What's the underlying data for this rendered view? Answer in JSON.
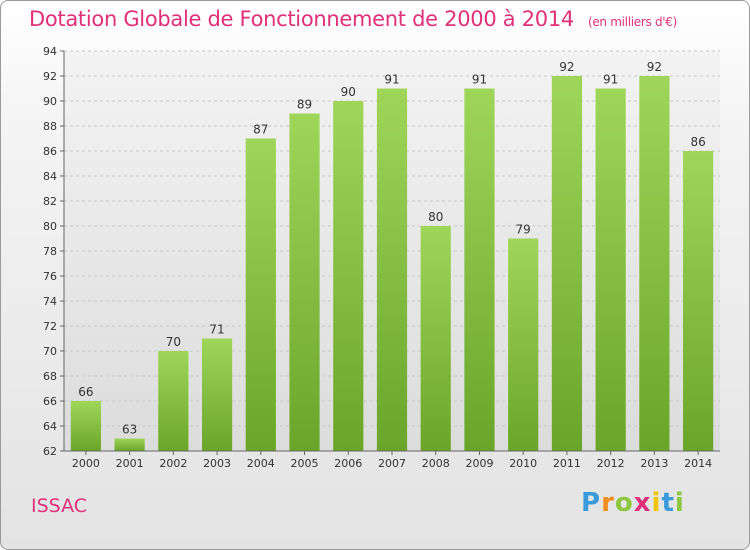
{
  "header": {
    "title": "Dotation Globale de Fonctionnement de 2000 à 2014",
    "unit": "(en milliers d'€)"
  },
  "footer": {
    "commune": "ISSAC",
    "logo_letters": [
      "P",
      "r",
      "o",
      "x",
      "i",
      "t",
      "i"
    ]
  },
  "colors": {
    "title": "#e0307a",
    "bar_top": "#9fd65a",
    "bar_bottom": "#6aa52a"
  },
  "chart_data": {
    "type": "bar",
    "title": "Dotation Globale de Fonctionnement de 2000 à 2014",
    "subtitle": "(en milliers d'€)",
    "categories": [
      "2000",
      "2001",
      "2002",
      "2003",
      "2004",
      "2005",
      "2006",
      "2007",
      "2008",
      "2009",
      "2010",
      "2011",
      "2012",
      "2013",
      "2014"
    ],
    "values": [
      66,
      63,
      70,
      71,
      87,
      89,
      90,
      91,
      80,
      91,
      79,
      92,
      91,
      92,
      86
    ],
    "ylim": [
      62,
      94
    ],
    "yticks": [
      62,
      64,
      66,
      68,
      70,
      72,
      74,
      76,
      78,
      80,
      82,
      84,
      86,
      88,
      90,
      92,
      94
    ],
    "grid": true,
    "legend": "none"
  }
}
